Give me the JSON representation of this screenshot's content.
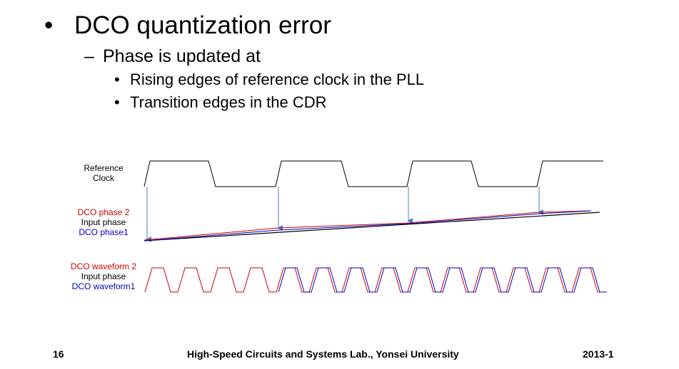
{
  "slide": {
    "bullet_main": "DCO quantization error",
    "sub_bullet": "Phase is updated at",
    "sub_sub_bullets": [
      "Rising edges of reference clock in the PLL",
      "Transition edges in the CDR"
    ],
    "bullet_char": "•",
    "dash_char": "–"
  },
  "diagram": {
    "reference_clock_label": [
      "Reference",
      "Clock"
    ],
    "phase_labels": {
      "dco_phase2": "DCO phase 2",
      "input_phase": "Input phase",
      "dco_phase1": "DCO phase1"
    },
    "waveform_labels": {
      "dco_waveform2": "DCO waveform 2",
      "input_phase": "Input phase",
      "dco_waveform1": "DCO waveform1"
    },
    "colors": {
      "red": "#cc0000",
      "blue": "#0000cc",
      "arrow": "#4a7fc1",
      "black": "#000000"
    }
  },
  "footer": {
    "page_number": "16",
    "lab_name": "High-Speed Circuits and Systems Lab., Yonsei University",
    "term": "2013-1"
  }
}
